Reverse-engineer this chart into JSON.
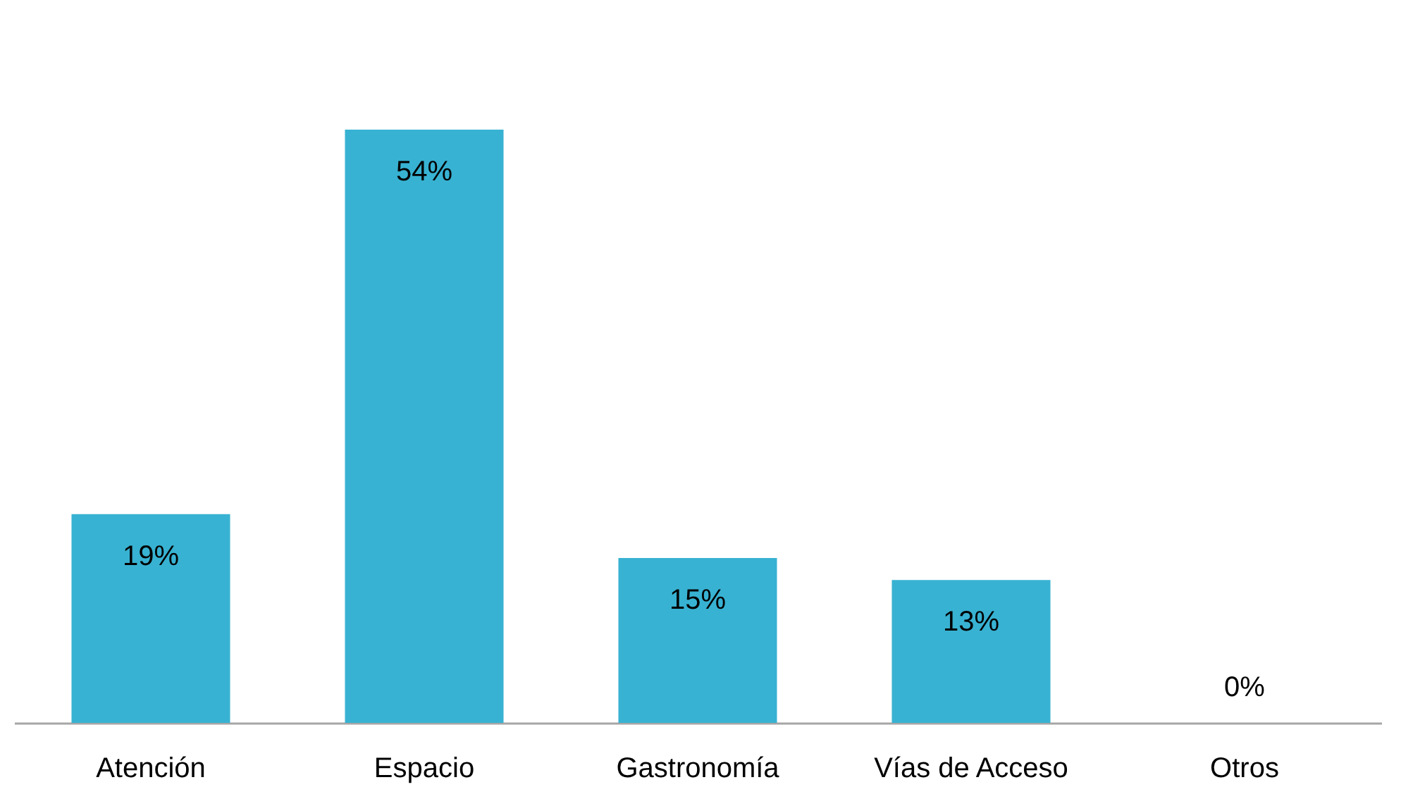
{
  "chart_data": {
    "type": "bar",
    "categories": [
      "Atención",
      "Espacio",
      "Gastronomía",
      "Vías de Acceso",
      "Otros"
    ],
    "values": [
      19,
      54,
      15,
      13,
      0
    ],
    "value_labels": [
      "19%",
      "54%",
      "15%",
      "13%",
      "0%"
    ],
    "color": "#38b2d2",
    "tick_labels": "x"
  }
}
